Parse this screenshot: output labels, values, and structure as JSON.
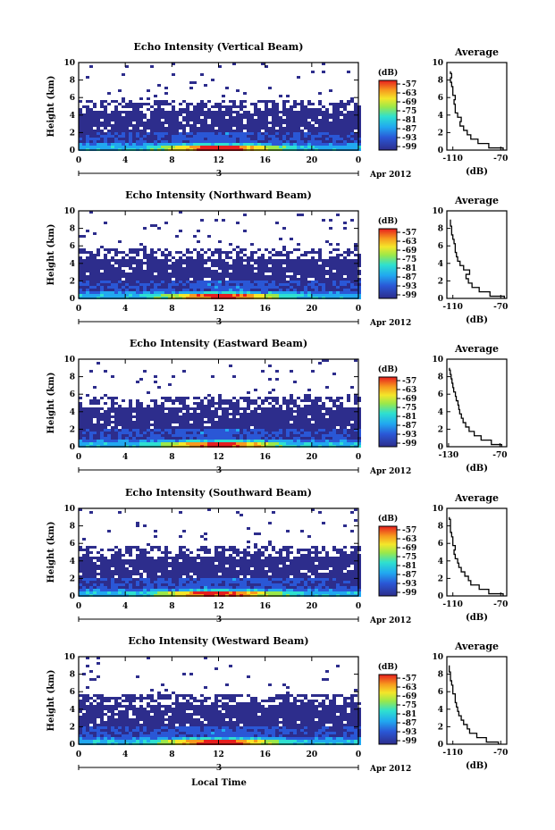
{
  "figure": {
    "xlabel": "Local Time",
    "date_day": "3",
    "date_month": "Apr 2012"
  },
  "chart_data": [
    {
      "type": "heatmap",
      "title": "Echo Intensity (Vertical Beam)",
      "xlabel": "",
      "ylabel": "Height (km)",
      "xlim": [
        0,
        24
      ],
      "ylim": [
        0,
        10
      ],
      "xticks": [
        "0",
        "4",
        "8",
        "12",
        "16",
        "20",
        "0"
      ],
      "yticks": [
        "0",
        "2",
        "4",
        "6",
        "8",
        "10"
      ],
      "colorbar": {
        "unit": "(dB)",
        "ticks": [
          "-57",
          "-63",
          "-69",
          "-75",
          "-81",
          "-87",
          "-93",
          "-99"
        ]
      },
      "profile": {
        "title": "Average",
        "xlabel": "(dB)",
        "xticks": [
          "-110",
          "-70"
        ],
        "xlim": [
          -115,
          -65
        ],
        "heights": [
          0,
          0.5,
          1,
          1.5,
          2,
          2.5,
          3,
          3.5,
          4,
          4.5,
          5,
          5.5,
          6,
          6.5,
          7,
          7.5,
          8,
          8.5,
          9
        ],
        "values": [
          -68,
          -80,
          -89,
          -95,
          -98,
          -101,
          -104,
          -103,
          -106,
          -108,
          -108,
          -109,
          -108,
          -110,
          -110,
          -111,
          -112,
          -111,
          -112
        ]
      }
    },
    {
      "type": "heatmap",
      "title": "Echo Intensity (Northward Beam)",
      "xlabel": "",
      "ylabel": "Height (km)",
      "xlim": [
        0,
        24
      ],
      "ylim": [
        0,
        10
      ],
      "xticks": [
        "0",
        "4",
        "8",
        "12",
        "16",
        "20",
        "0"
      ],
      "yticks": [
        "0",
        "2",
        "4",
        "6",
        "8",
        "10"
      ],
      "colorbar": {
        "unit": "(dB)",
        "ticks": [
          "-57",
          "-63",
          "-69",
          "-75",
          "-81",
          "-87",
          "-93",
          "-99"
        ]
      },
      "profile": {
        "title": "Average",
        "xlabel": "(dB)",
        "xticks": [
          "-110",
          "-70"
        ],
        "xlim": [
          -115,
          -65
        ],
        "heights": [
          0,
          0.5,
          1,
          1.5,
          2,
          2.5,
          3,
          3.5,
          4,
          4.5,
          5,
          5.5,
          6,
          6.5,
          7,
          7.5,
          8,
          8.5,
          9
        ],
        "values": [
          -67,
          -79,
          -88,
          -94,
          -97,
          -99,
          -96,
          -101,
          -104,
          -106,
          -107,
          -108,
          -108,
          -109,
          -110,
          -111,
          -111,
          -112,
          -112
        ]
      }
    },
    {
      "type": "heatmap",
      "title": "Echo Intensity (Eastward Beam)",
      "xlabel": "",
      "ylabel": "Height (km)",
      "xlim": [
        0,
        24
      ],
      "ylim": [
        0,
        10
      ],
      "xticks": [
        "0",
        "4",
        "8",
        "12",
        "16",
        "20",
        "0"
      ],
      "yticks": [
        "0",
        "2",
        "4",
        "6",
        "8",
        "10"
      ],
      "colorbar": {
        "unit": "(dB)",
        "ticks": [
          "-57",
          "-63",
          "-69",
          "-75",
          "-81",
          "-87",
          "-93",
          "-99"
        ]
      },
      "profile": {
        "title": "Average",
        "xlabel": "(dB)",
        "xticks": [
          "-130",
          "-70"
        ],
        "xlim": [
          -132,
          -62
        ],
        "heights": [
          0,
          0.5,
          1,
          1.5,
          2,
          2.5,
          3,
          3.5,
          4,
          4.5,
          5,
          5.5,
          6,
          6.5,
          7,
          7.5,
          8,
          8.5,
          9
        ],
        "values": [
          -68,
          -80,
          -92,
          -100,
          -106,
          -110,
          -113,
          -115,
          -117,
          -118,
          -119,
          -121,
          -122,
          -124,
          -125,
          -126,
          -127,
          -128,
          -129
        ]
      }
    },
    {
      "type": "heatmap",
      "title": "Echo Intensity (Southward Beam)",
      "xlabel": "",
      "ylabel": "Height (km)",
      "xlim": [
        0,
        24
      ],
      "ylim": [
        0,
        10
      ],
      "xticks": [
        "0",
        "4",
        "8",
        "12",
        "16",
        "20",
        "0"
      ],
      "yticks": [
        "0",
        "2",
        "4",
        "6",
        "8",
        "10"
      ],
      "colorbar": {
        "unit": "(dB)",
        "ticks": [
          "-57",
          "-63",
          "-69",
          "-75",
          "-81",
          "-87",
          "-93",
          "-99"
        ]
      },
      "profile": {
        "title": "Average",
        "xlabel": "(dB)",
        "xticks": [
          "-110",
          "-70"
        ],
        "xlim": [
          -115,
          -65
        ],
        "heights": [
          0,
          0.5,
          1,
          1.5,
          2,
          2.5,
          3,
          3.5,
          4,
          4.5,
          5,
          5.5,
          6,
          6.5,
          7,
          7.5,
          8,
          8.5,
          9
        ],
        "values": [
          -68,
          -80,
          -88,
          -95,
          -97,
          -100,
          -103,
          -105,
          -106,
          -108,
          -109,
          -108,
          -110,
          -110,
          -111,
          -112,
          -112,
          -112,
          -113
        ]
      }
    },
    {
      "type": "heatmap",
      "title": "Echo Intensity (Westward Beam)",
      "xlabel": "",
      "ylabel": "Height (km)",
      "xlim": [
        0,
        24
      ],
      "ylim": [
        0,
        10
      ],
      "xticks": [
        "0",
        "4",
        "8",
        "12",
        "16",
        "20",
        "0"
      ],
      "yticks": [
        "0",
        "2",
        "4",
        "6",
        "8",
        "10"
      ],
      "colorbar": {
        "unit": "(dB)",
        "ticks": [
          "-57",
          "-63",
          "-69",
          "-75",
          "-81",
          "-87",
          "-93",
          "-99"
        ]
      },
      "profile": {
        "title": "Average",
        "xlabel": "(dB)",
        "xticks": [
          "-110",
          "-70"
        ],
        "xlim": [
          -115,
          -65
        ],
        "heights": [
          0,
          0.5,
          1,
          1.5,
          2,
          2.5,
          3,
          3.5,
          4,
          4.5,
          5,
          5.5,
          6,
          6.5,
          7,
          7.5,
          8,
          8.5,
          9
        ],
        "values": [
          -72,
          -82,
          -90,
          -96,
          -98,
          -101,
          -103,
          -105,
          -106,
          -107,
          -108,
          -108,
          -110,
          -110,
          -111,
          -112,
          -112,
          -113,
          -113
        ]
      }
    }
  ]
}
